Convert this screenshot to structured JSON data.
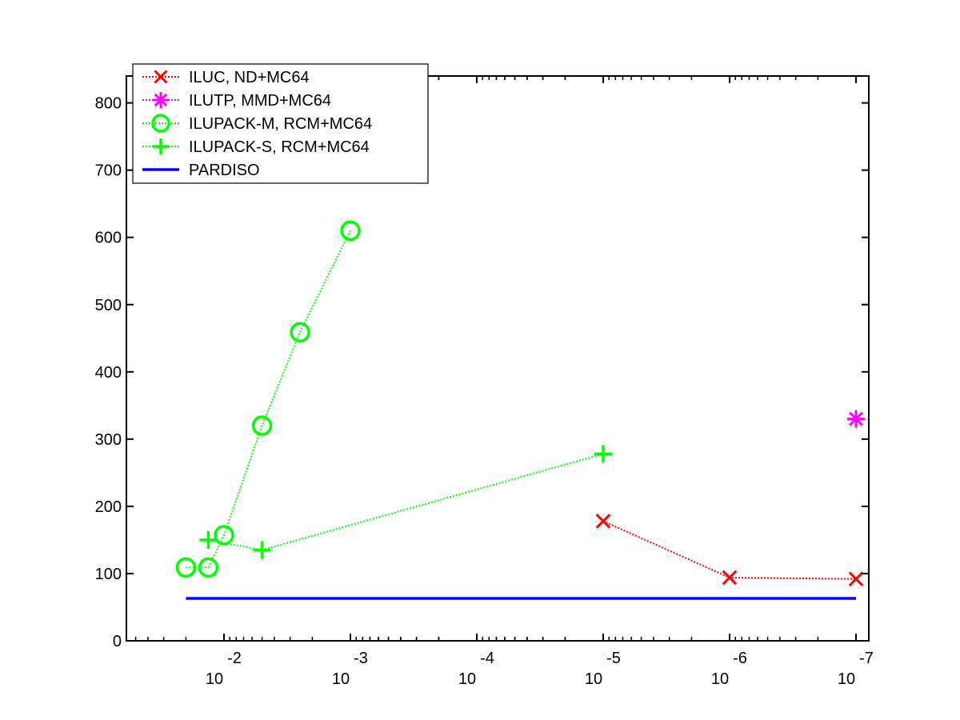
{
  "chart_data": {
    "type": "line",
    "x_scale": "log",
    "x_axis_direction": "reversed",
    "xlim": [
      0.022,
      1e-07
    ],
    "ylim": [
      0,
      840
    ],
    "grid": false,
    "legend_position": "top-left",
    "x_ticks": [
      {
        "value": 0.01,
        "base": "10",
        "exp": "-2"
      },
      {
        "value": 0.001,
        "base": "10",
        "exp": "-3"
      },
      {
        "value": 0.0001,
        "base": "10",
        "exp": "-4"
      },
      {
        "value": 1e-05,
        "base": "10",
        "exp": "-5"
      },
      {
        "value": 1e-06,
        "base": "10",
        "exp": "-6"
      },
      {
        "value": 1e-07,
        "base": "10",
        "exp": "-7"
      }
    ],
    "y_ticks": [
      {
        "value": 0,
        "label": "0"
      },
      {
        "value": 100,
        "label": "100"
      },
      {
        "value": 200,
        "label": "200"
      },
      {
        "value": 300,
        "label": "300"
      },
      {
        "value": 400,
        "label": "400"
      },
      {
        "value": 500,
        "label": "500"
      },
      {
        "value": 600,
        "label": "600"
      },
      {
        "value": 700,
        "label": "700"
      },
      {
        "value": 800,
        "label": "800"
      }
    ],
    "series": [
      {
        "name": "ILUC,  ND+MC64",
        "color": "#ff0000",
        "marker": "x",
        "line": "dotted",
        "points": [
          [
            1e-05,
            178
          ],
          [
            1e-06,
            94
          ],
          [
            1e-07,
            92
          ]
        ]
      },
      {
        "name": "ILUTP, MMD+MC64",
        "color": "#ff00ff",
        "marker": "asterisk",
        "line": "dotted",
        "points": [
          [
            1e-07,
            330
          ]
        ]
      },
      {
        "name": "ILUPACK-M, RCM+MC64",
        "color": "#00ff00",
        "marker": "circle",
        "line": "dotted",
        "points": [
          [
            0.02,
            109
          ],
          [
            0.0133,
            109
          ],
          [
            0.01,
            157
          ],
          [
            0.005,
            320
          ],
          [
            0.0025,
            459
          ],
          [
            0.001,
            610
          ]
        ]
      },
      {
        "name": "ILUPACK-S, RCM+MC64",
        "color": "#00ff00",
        "marker": "plus",
        "line": "dotted",
        "points": [
          [
            0.0133,
            150
          ],
          [
            0.005,
            135
          ],
          [
            1e-05,
            278
          ]
        ]
      },
      {
        "name": "PARDISO",
        "color": "#0000ff",
        "marker": "none",
        "line": "solid",
        "points": [
          [
            0.02,
            63
          ],
          [
            1e-07,
            63
          ]
        ]
      }
    ]
  }
}
